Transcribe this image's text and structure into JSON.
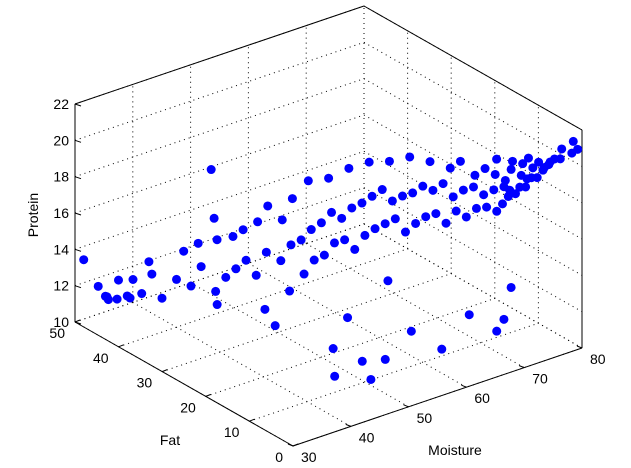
{
  "chart_data": {
    "type": "scatter",
    "projection": "3d",
    "title": "",
    "xlabel": "Moisture",
    "ylabel": "Fat",
    "zlabel": "Protein",
    "xlim": [
      30,
      80
    ],
    "ylim": [
      0,
      50
    ],
    "zlim": [
      10,
      22
    ],
    "xticks": [
      30,
      40,
      50,
      60,
      70,
      80
    ],
    "yticks": [
      0,
      10,
      20,
      30,
      40,
      50
    ],
    "zticks": [
      10,
      12,
      14,
      16,
      18,
      20,
      22
    ],
    "grid": true,
    "marker_color": "#0000ff",
    "points": [
      {
        "x": 30,
        "y": 48,
        "z": 13.7
      },
      {
        "x": 31,
        "y": 46,
        "z": 12.4
      },
      {
        "x": 31,
        "y": 44,
        "z": 12.1
      },
      {
        "x": 32,
        "y": 45,
        "z": 11.7
      },
      {
        "x": 32,
        "y": 43,
        "z": 12.0
      },
      {
        "x": 33,
        "y": 44,
        "z": 12.8
      },
      {
        "x": 33,
        "y": 42,
        "z": 12.2
      },
      {
        "x": 33,
        "y": 47,
        "z": 11.5
      },
      {
        "x": 34,
        "y": 42,
        "z": 13.0
      },
      {
        "x": 34,
        "y": 40,
        "z": 12.5
      },
      {
        "x": 35,
        "y": 44,
        "z": 11.6
      },
      {
        "x": 35,
        "y": 39,
        "z": 13.6
      },
      {
        "x": 36,
        "y": 41,
        "z": 13.9
      },
      {
        "x": 36,
        "y": 38,
        "z": 12.3
      },
      {
        "x": 37,
        "y": 36,
        "z": 13.5
      },
      {
        "x": 38,
        "y": 34,
        "z": 13.3
      },
      {
        "x": 39,
        "y": 37,
        "z": 14.7
      },
      {
        "x": 39,
        "y": 33,
        "z": 14.4
      },
      {
        "x": 40,
        "y": 31,
        "z": 13.2
      },
      {
        "x": 40,
        "y": 35,
        "z": 15.3
      },
      {
        "x": 41,
        "y": 30,
        "z": 14.0
      },
      {
        "x": 41,
        "y": 32,
        "z": 15.8
      },
      {
        "x": 42,
        "y": 29,
        "z": 14.5
      },
      {
        "x": 42,
        "y": 34,
        "z": 16.6
      },
      {
        "x": 43,
        "y": 28,
        "z": 15.0
      },
      {
        "x": 43,
        "y": 31,
        "z": 15.9
      },
      {
        "x": 43,
        "y": 36,
        "z": 18.9
      },
      {
        "x": 44,
        "y": 27,
        "z": 14.2
      },
      {
        "x": 44,
        "y": 30,
        "z": 16.3
      },
      {
        "x": 44,
        "y": 25,
        "z": 12.6
      },
      {
        "x": 45,
        "y": 26,
        "z": 15.5
      },
      {
        "x": 45,
        "y": 28,
        "z": 16.9
      },
      {
        "x": 46,
        "y": 24,
        "z": 15.2
      },
      {
        "x": 46,
        "y": 27,
        "z": 17.8
      },
      {
        "x": 46,
        "y": 22,
        "z": 13.8
      },
      {
        "x": 47,
        "y": 23,
        "z": 16.1
      },
      {
        "x": 47,
        "y": 25,
        "z": 17.2
      },
      {
        "x": 47,
        "y": 20,
        "z": 14.9
      },
      {
        "x": 48,
        "y": 22,
        "z": 16.4
      },
      {
        "x": 48,
        "y": 24,
        "z": 18.4
      },
      {
        "x": 48,
        "y": 19,
        "z": 15.7
      },
      {
        "x": 49,
        "y": 21,
        "z": 17.0
      },
      {
        "x": 49,
        "y": 18,
        "z": 16.0
      },
      {
        "x": 50,
        "y": 20,
        "z": 17.4
      },
      {
        "x": 50,
        "y": 17,
        "z": 16.7
      },
      {
        "x": 50,
        "y": 23,
        "z": 19.3
      },
      {
        "x": 51,
        "y": 19,
        "z": 18.0
      },
      {
        "x": 51,
        "y": 16,
        "z": 16.9
      },
      {
        "x": 52,
        "y": 18,
        "z": 17.7
      },
      {
        "x": 52,
        "y": 15,
        "z": 16.4
      },
      {
        "x": 52,
        "y": 21,
        "z": 19.5
      },
      {
        "x": 53,
        "y": 17,
        "z": 18.3
      },
      {
        "x": 53,
        "y": 14,
        "z": 17.2
      },
      {
        "x": 54,
        "y": 16,
        "z": 18.6
      },
      {
        "x": 54,
        "y": 13,
        "z": 17.6
      },
      {
        "x": 54,
        "y": 19,
        "z": 20.1
      },
      {
        "x": 55,
        "y": 15,
        "z": 19.0
      },
      {
        "x": 55,
        "y": 12,
        "z": 17.9
      },
      {
        "x": 56,
        "y": 14,
        "z": 19.4
      },
      {
        "x": 56,
        "y": 11,
        "z": 18.2
      },
      {
        "x": 56,
        "y": 17,
        "z": 20.5
      },
      {
        "x": 57,
        "y": 13,
        "z": 18.8
      },
      {
        "x": 57,
        "y": 10,
        "z": 17.5
      },
      {
        "x": 58,
        "y": 12,
        "z": 19.1
      },
      {
        "x": 58,
        "y": 9,
        "z": 18.0
      },
      {
        "x": 58,
        "y": 15,
        "z": 20.6
      },
      {
        "x": 59,
        "y": 11,
        "z": 19.3
      },
      {
        "x": 59,
        "y": 8,
        "z": 18.4
      },
      {
        "x": 60,
        "y": 10,
        "z": 19.7
      },
      {
        "x": 60,
        "y": 7,
        "z": 18.6
      },
      {
        "x": 60,
        "y": 13,
        "z": 20.9
      },
      {
        "x": 61,
        "y": 9,
        "z": 19.5
      },
      {
        "x": 61,
        "y": 6,
        "z": 18.1
      },
      {
        "x": 62,
        "y": 8,
        "z": 19.9
      },
      {
        "x": 62,
        "y": 5,
        "z": 18.8
      },
      {
        "x": 62,
        "y": 11,
        "z": 20.7
      },
      {
        "x": 63,
        "y": 7,
        "z": 19.2
      },
      {
        "x": 63,
        "y": 4,
        "z": 18.5
      },
      {
        "x": 64,
        "y": 6,
        "z": 19.6
      },
      {
        "x": 64,
        "y": 3,
        "z": 19.0
      },
      {
        "x": 64,
        "y": 9,
        "z": 20.4
      },
      {
        "x": 65,
        "y": 5,
        "z": 19.8
      },
      {
        "x": 65,
        "y": 2,
        "z": 19.1
      },
      {
        "x": 65,
        "y": 8,
        "z": 20.8
      },
      {
        "x": 66,
        "y": 4,
        "z": 19.4
      },
      {
        "x": 66,
        "y": 1,
        "z": 18.9
      },
      {
        "x": 66,
        "y": 6,
        "z": 20.2
      },
      {
        "x": 67,
        "y": 3,
        "z": 19.7
      },
      {
        "x": 67,
        "y": 5,
        "z": 20.6
      },
      {
        "x": 67,
        "y": 1,
        "z": 19.2
      },
      {
        "x": 68,
        "y": 2,
        "z": 19.9
      },
      {
        "x": 68,
        "y": 4,
        "z": 20.3
      },
      {
        "x": 68,
        "y": 1,
        "z": 19.5
      },
      {
        "x": 69,
        "y": 3,
        "z": 20.0
      },
      {
        "x": 69,
        "y": 2,
        "z": 19.6
      },
      {
        "x": 69,
        "y": 5,
        "z": 20.9
      },
      {
        "x": 70,
        "y": 1,
        "z": 19.8
      },
      {
        "x": 70,
        "y": 3,
        "z": 20.5
      },
      {
        "x": 70,
        "y": 2,
        "z": 19.3
      },
      {
        "x": 71,
        "y": 2,
        "z": 20.2
      },
      {
        "x": 71,
        "y": 4,
        "z": 20.7
      },
      {
        "x": 71,
        "y": 1,
        "z": 19.7
      },
      {
        "x": 72,
        "y": 1,
        "z": 20.1
      },
      {
        "x": 72,
        "y": 3,
        "z": 20.6
      },
      {
        "x": 72,
        "y": 2,
        "z": 19.9
      },
      {
        "x": 73,
        "y": 2,
        "z": 20.4
      },
      {
        "x": 73,
        "y": 1,
        "z": 20.0
      },
      {
        "x": 73,
        "y": 3,
        "z": 20.8
      },
      {
        "x": 74,
        "y": 1,
        "z": 20.3
      },
      {
        "x": 74,
        "y": 2,
        "z": 20.6
      },
      {
        "x": 75,
        "y": 1,
        "z": 20.5
      },
      {
        "x": 75,
        "y": 2,
        "z": 20.2
      },
      {
        "x": 76,
        "y": 1,
        "z": 20.7
      },
      {
        "x": 76,
        "y": 2,
        "z": 20.4
      },
      {
        "x": 77,
        "y": 1,
        "z": 20.6
      },
      {
        "x": 78,
        "y": 2,
        "z": 20.9
      },
      {
        "x": 79,
        "y": 1,
        "z": 20.7
      },
      {
        "x": 80,
        "y": 2,
        "z": 21.1
      },
      {
        "x": 80,
        "y": 1,
        "z": 20.8
      },
      {
        "x": 70,
        "y": 3,
        "z": 14.0
      },
      {
        "x": 68,
        "y": 2,
        "z": 12.6
      },
      {
        "x": 60,
        "y": 18,
        "z": 13.4
      },
      {
        "x": 66,
        "y": 1,
        "z": 12.3
      },
      {
        "x": 58,
        "y": 3,
        "z": 11.9
      },
      {
        "x": 52,
        "y": 8,
        "z": 11.3
      },
      {
        "x": 48,
        "y": 6,
        "z": 10.9
      },
      {
        "x": 44,
        "y": 9,
        "z": 11.1
      },
      {
        "x": 50,
        "y": 14,
        "z": 13.0
      },
      {
        "x": 46,
        "y": 12,
        "z": 12.0
      },
      {
        "x": 42,
        "y": 20,
        "z": 12.6
      },
      {
        "x": 38,
        "y": 28,
        "z": 13.1
      },
      {
        "x": 45,
        "y": 4,
        "z": 12.5
      },
      {
        "x": 55,
        "y": 6,
        "z": 12.8
      },
      {
        "x": 62,
        "y": 2,
        "z": 13.5
      }
    ]
  }
}
